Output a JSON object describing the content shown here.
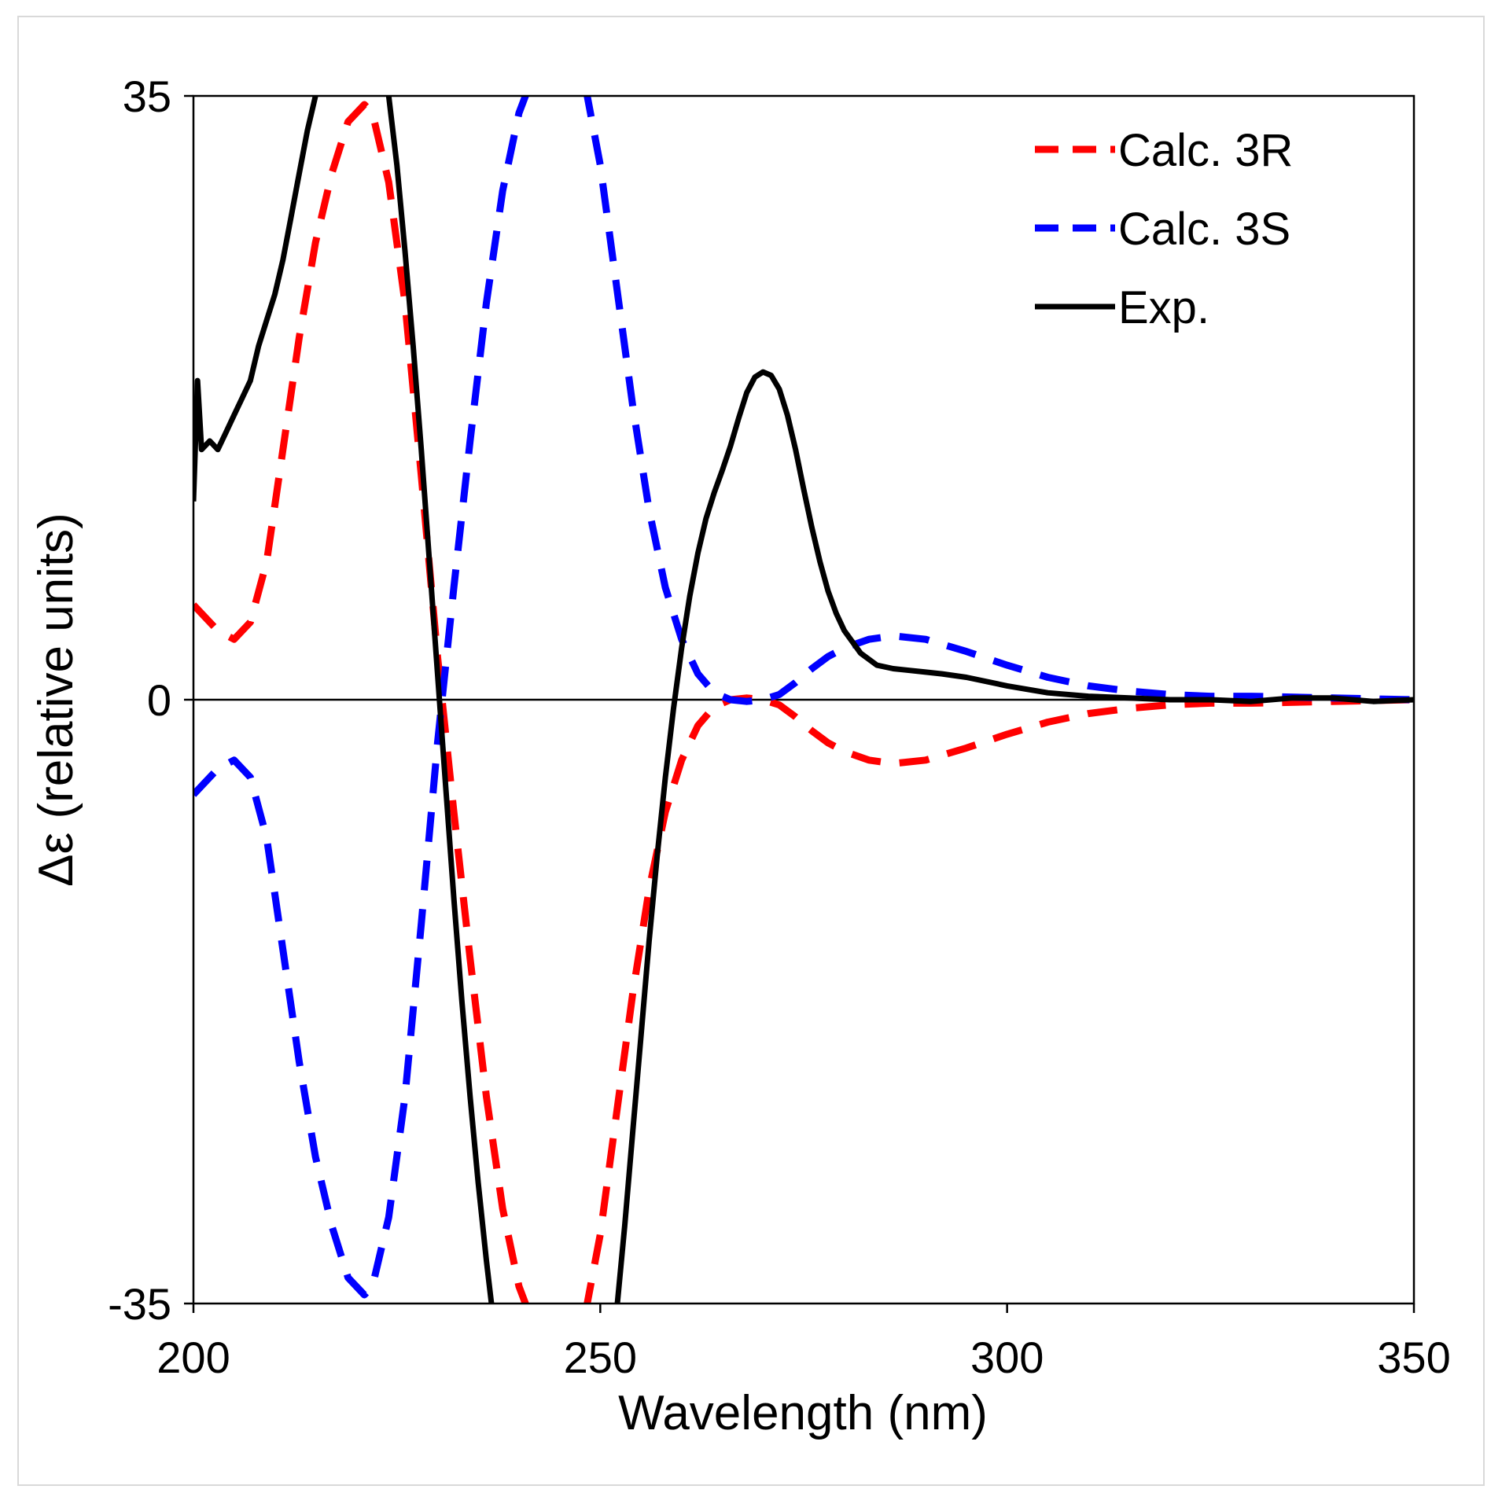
{
  "chart_data": {
    "type": "line",
    "title": "",
    "xlabel": "Wavelength (nm)",
    "ylabel": "Δε (relative units)",
    "xlim": [
      200,
      350
    ],
    "ylim": [
      -35,
      35
    ],
    "xticks": [
      200,
      250,
      300,
      350
    ],
    "yticks": [
      35,
      0,
      -35
    ],
    "xtick_labels": [
      "200",
      "250",
      "300",
      "350"
    ],
    "ytick_labels": [
      "35",
      "0",
      "-35"
    ],
    "grid": false,
    "zero_line": true,
    "legend": {
      "position": "top-right",
      "entries": [
        "Calc. 3R",
        "Calc. 3S",
        "Exp."
      ]
    },
    "series": [
      {
        "name": "Calc. 3R",
        "color": "#ff0000",
        "style": "dashed",
        "x": [
          200,
          203,
          205,
          207,
          209,
          211,
          213,
          215,
          217,
          219,
          221,
          222,
          224,
          226,
          228,
          230,
          232,
          234,
          236,
          238,
          240,
          242,
          244,
          245,
          246,
          248,
          250,
          252,
          254,
          256,
          258,
          260,
          262,
          264,
          266,
          268,
          270,
          272,
          274,
          276,
          278,
          280,
          283,
          286,
          290,
          295,
          300,
          305,
          310,
          315,
          320,
          325,
          330,
          340,
          350
        ],
        "y": [
          5.5,
          4,
          3.5,
          4.5,
          8,
          14.5,
          21,
          26.5,
          30.5,
          33.5,
          34.5,
          34,
          30,
          23,
          13,
          2.5,
          -6.5,
          -15,
          -23,
          -29.5,
          -34,
          -36.5,
          -38,
          -38.3,
          -38,
          -36,
          -31,
          -24,
          -17,
          -11,
          -6.5,
          -3.5,
          -1.5,
          -0.4,
          0,
          0.1,
          0,
          -0.3,
          -1,
          -1.8,
          -2.5,
          -3,
          -3.5,
          -3.7,
          -3.5,
          -2.8,
          -2,
          -1.3,
          -0.8,
          -0.5,
          -0.3,
          -0.2,
          -0.2,
          -0.1,
          0
        ]
      },
      {
        "name": "Calc. 3S",
        "color": "#0000ff",
        "style": "dashed",
        "x": [
          200,
          203,
          205,
          207,
          209,
          211,
          213,
          215,
          217,
          219,
          221,
          222,
          224,
          226,
          228,
          230,
          232,
          234,
          236,
          238,
          240,
          242,
          244,
          245,
          246,
          248,
          250,
          252,
          254,
          256,
          258,
          260,
          262,
          264,
          266,
          268,
          270,
          272,
          274,
          276,
          278,
          280,
          283,
          286,
          290,
          295,
          300,
          305,
          310,
          315,
          320,
          325,
          330,
          340,
          350
        ],
        "y": [
          -5.5,
          -4,
          -3.5,
          -4.5,
          -8,
          -14.5,
          -21,
          -26.5,
          -30.5,
          -33.5,
          -34.5,
          -34,
          -30,
          -23,
          -13,
          -2.5,
          6.5,
          15,
          23,
          29.5,
          34,
          36.5,
          38,
          38.3,
          38,
          36,
          31,
          24,
          17,
          11,
          6.5,
          3.5,
          1.5,
          0.4,
          0,
          -0.1,
          0,
          0.3,
          1,
          1.8,
          2.5,
          3,
          3.5,
          3.7,
          3.5,
          2.8,
          2,
          1.3,
          0.8,
          0.5,
          0.3,
          0.2,
          0.2,
          0.1,
          0
        ]
      },
      {
        "name": "Exp.",
        "color": "#000000",
        "style": "solid",
        "x": [
          200,
          200.5,
          201,
          202,
          203,
          204,
          205,
          206,
          207,
          208,
          209,
          210,
          211,
          212,
          213,
          214,
          215,
          216,
          217,
          218,
          219,
          220,
          221,
          222,
          223,
          224,
          225,
          226,
          227,
          228,
          229,
          230,
          231,
          232,
          233,
          234,
          235,
          236,
          237,
          238,
          239,
          240,
          241,
          242,
          243,
          244,
          245,
          246,
          247,
          248,
          249,
          250,
          251,
          252,
          253,
          254,
          255,
          256,
          257,
          258,
          259,
          260,
          261,
          262,
          263,
          264,
          265,
          266,
          267,
          268,
          269,
          270,
          271,
          272,
          273,
          274,
          275,
          276,
          277,
          278,
          279,
          280,
          282,
          284,
          286,
          288,
          290,
          292,
          295,
          300,
          305,
          310,
          315,
          320,
          325,
          330,
          335,
          340,
          345,
          350
        ],
        "y": [
          11.5,
          18.5,
          14.5,
          15,
          14.5,
          15.5,
          16.5,
          17.5,
          18.5,
          20.5,
          22,
          23.5,
          25.5,
          28,
          30.5,
          33,
          35,
          37,
          38.5,
          39.8,
          40.5,
          40.8,
          41,
          40.5,
          38.5,
          35,
          31,
          26,
          20.5,
          14.5,
          8,
          1.5,
          -5,
          -11.5,
          -17.5,
          -23,
          -28,
          -32.5,
          -36.5,
          -39.5,
          -42,
          -44,
          -45.5,
          -46.5,
          -47.2,
          -47.8,
          -48.3,
          -48.5,
          -48.3,
          -47.5,
          -46,
          -43.5,
          -40,
          -35.5,
          -30.5,
          -25,
          -19.5,
          -14,
          -9,
          -4.5,
          -0.5,
          3,
          6,
          8.5,
          10.5,
          12,
          13.3,
          14.7,
          16.3,
          17.8,
          18.7,
          19,
          18.8,
          18,
          16.5,
          14.5,
          12.2,
          10,
          8,
          6.3,
          5,
          4,
          2.7,
          2,
          1.8,
          1.7,
          1.6,
          1.5,
          1.3,
          0.8,
          0.4,
          0.2,
          0.1,
          0,
          0,
          -0.1,
          0.1,
          0.1,
          -0.1,
          0
        ]
      }
    ]
  }
}
